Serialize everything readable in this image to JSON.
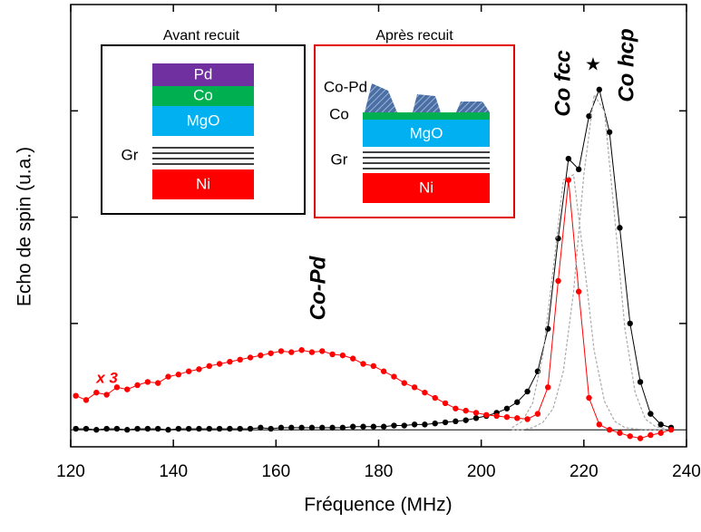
{
  "chart_data": {
    "type": "scatter",
    "x_label": "Fréquence (MHz)",
    "y_label": "Echo de spin (u.a.)",
    "xlim": [
      120,
      240
    ],
    "xticks": [
      120,
      140,
      160,
      180,
      200,
      220,
      240
    ],
    "ylim": [
      -0.16,
      4.0
    ],
    "yticks": [
      1,
      2,
      3
    ],
    "x": [
      121,
      123,
      125,
      127,
      129,
      131,
      133,
      135,
      137,
      139,
      141,
      143,
      145,
      147,
      149,
      151,
      153,
      155,
      157,
      159,
      161,
      163,
      165,
      167,
      169,
      171,
      173,
      175,
      177,
      179,
      181,
      183,
      185,
      187,
      189,
      191,
      193,
      195,
      197,
      199,
      201,
      203,
      205,
      207,
      209,
      211,
      213,
      215,
      217,
      219,
      221,
      223,
      225,
      227,
      229,
      231,
      233,
      235,
      237
    ],
    "series": [
      {
        "color": "#000000",
        "style": "dots",
        "values": [
          0.01,
          0.01,
          0.0,
          0.01,
          0.01,
          0.0,
          0.01,
          0.01,
          0.01,
          0.0,
          0.01,
          0.01,
          0.01,
          0.01,
          0.01,
          0.01,
          0.01,
          0.01,
          0.02,
          0.01,
          0.02,
          0.02,
          0.02,
          0.02,
          0.02,
          0.02,
          0.02,
          0.03,
          0.03,
          0.03,
          0.03,
          0.04,
          0.04,
          0.05,
          0.05,
          0.06,
          0.07,
          0.08,
          0.09,
          0.11,
          0.13,
          0.16,
          0.2,
          0.26,
          0.36,
          0.55,
          0.95,
          1.8,
          2.55,
          2.45,
          2.95,
          3.2,
          2.8,
          1.9,
          1.0,
          0.45,
          0.15,
          0.05,
          0.02
        ]
      },
      {
        "color": "#ff0000",
        "style": "dots",
        "values": [
          0.32,
          0.28,
          0.35,
          0.33,
          0.4,
          0.38,
          0.42,
          0.45,
          0.44,
          0.5,
          0.52,
          0.55,
          0.57,
          0.6,
          0.62,
          0.64,
          0.66,
          0.68,
          0.7,
          0.72,
          0.74,
          0.73,
          0.75,
          0.73,
          0.74,
          0.71,
          0.7,
          0.67,
          0.62,
          0.6,
          0.55,
          0.5,
          0.44,
          0.4,
          0.35,
          0.3,
          0.25,
          0.2,
          0.18,
          0.16,
          0.14,
          0.13,
          0.12,
          0.11,
          0.1,
          0.15,
          0.4,
          1.4,
          2.35,
          1.3,
          0.3,
          0.05,
          0.0,
          -0.03,
          -0.06,
          -0.08,
          -0.05,
          -0.03,
          0.0
        ]
      },
      {
        "color": "#aaaaaa",
        "style": "dashed",
        "x": [
          206,
          208,
          210,
          212,
          214,
          216,
          218,
          220,
          222,
          224,
          226,
          228,
          230,
          232,
          234,
          236
        ],
        "values": [
          0.02,
          0.08,
          0.25,
          0.7,
          1.5,
          2.35,
          2.4,
          1.6,
          0.75,
          0.27,
          0.08,
          0.02,
          0.01,
          0,
          0,
          0
        ]
      },
      {
        "color": "#aaaaaa",
        "style": "dashed",
        "x": [
          206,
          208,
          210,
          212,
          214,
          216,
          218,
          220,
          222,
          224,
          226,
          228,
          230,
          232,
          234,
          236
        ],
        "values": [
          0,
          0,
          0.02,
          0.07,
          0.2,
          0.55,
          1.3,
          2.4,
          3.15,
          3.0,
          2.0,
          0.95,
          0.35,
          0.1,
          0.03,
          0.01
        ]
      }
    ],
    "annotations": [
      {
        "text": "Co-Pd",
        "color": "#000000"
      },
      {
        "text": "Co fcc",
        "color": "#000000"
      },
      {
        "text": "★",
        "color": "#000000"
      },
      {
        "text": "Co hcp",
        "color": "#000000"
      },
      {
        "text": "x 3",
        "color": "#ff0000"
      }
    ],
    "insets": [
      {
        "title": "Avant recuit",
        "layers": [
          "Pd",
          "Co",
          "MgO",
          "Ni"
        ],
        "side_labels": [
          "Gr"
        ]
      },
      {
        "title": "Après recuit",
        "layers": [
          "MgO",
          "Ni"
        ],
        "side_labels": [
          "Co-Pd",
          "Co",
          "Gr"
        ]
      }
    ]
  }
}
